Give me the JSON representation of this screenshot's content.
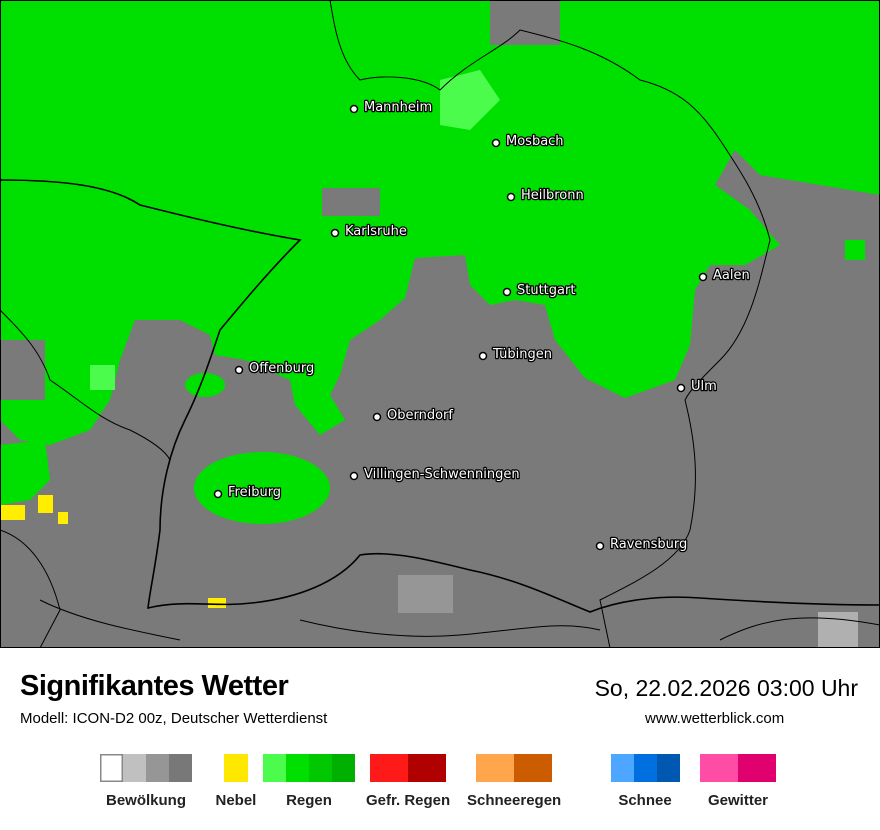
{
  "map": {
    "colors": {
      "cloud": "#7a7a7a",
      "rain": "#00e000",
      "rain_light": "#4cfc4c",
      "fog": "#ffee00",
      "border": "#000000"
    },
    "cities": [
      {
        "name": "Mannheim"
      },
      {
        "name": "Mosbach"
      },
      {
        "name": "Heilbronn"
      },
      {
        "name": "Karlsruhe"
      },
      {
        "name": "Aalen"
      },
      {
        "name": "Stuttgart"
      },
      {
        "name": "Tübingen"
      },
      {
        "name": "Offenburg"
      },
      {
        "name": "Ulm"
      },
      {
        "name": "Oberndorf"
      },
      {
        "name": "Villingen-Schwenningen"
      },
      {
        "name": "Freiburg"
      },
      {
        "name": "Ravensburg"
      }
    ]
  },
  "header": {
    "title": "Signifikantes Wetter",
    "subtitle": "Modell: ICON-D2 00z, Deutscher Wetterdienst",
    "datetime": "So, 22.02.2026 03:00 Uhr",
    "website": "www.wetterblick.com"
  },
  "legend": [
    {
      "label": "Bewölkung",
      "colors": [
        "#ffffff",
        "#c0c0c0",
        "#969696",
        "#787878"
      ]
    },
    {
      "label": "Nebel",
      "colors": [
        "#ffe800"
      ]
    },
    {
      "label": "Regen",
      "colors": [
        "#4cfc4c",
        "#00e000",
        "#00c800",
        "#00b000"
      ]
    },
    {
      "label": "Gefr. Regen",
      "colors": [
        "#ff1a1a",
        "#b00000"
      ]
    },
    {
      "label": "Schneeregen",
      "colors": [
        "#ffa64d",
        "#cc5c00"
      ]
    },
    {
      "label": "Schnee",
      "colors": [
        "#4da6ff",
        "#0070e0",
        "#0058b0"
      ]
    },
    {
      "label": "Gewitter",
      "colors": [
        "#ff4da6",
        "#e0006e"
      ]
    }
  ]
}
